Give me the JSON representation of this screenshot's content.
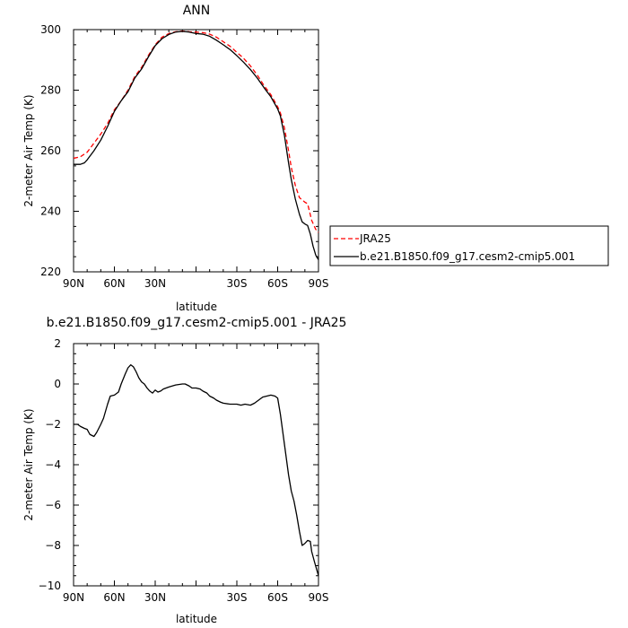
{
  "chart_data": [
    {
      "type": "line",
      "title": "ANN",
      "xlabel": "latitude",
      "ylabel": "2-meter Air Temp (K)",
      "xlim": [
        90,
        -90
      ],
      "ylim": [
        220,
        300
      ],
      "xticks": [
        90,
        60,
        30,
        0,
        -30,
        -60,
        -90
      ],
      "xtick_labels": [
        "90N",
        "60N",
        "30N",
        "",
        "30S",
        "60S",
        "90S"
      ],
      "yticks": [
        220,
        240,
        260,
        280,
        300
      ],
      "ytick_labels": [
        "220",
        "240",
        "260",
        "280",
        "300"
      ],
      "legend": "right",
      "series": [
        {
          "name": "JRA25",
          "color": "#ff0000",
          "dash": "dashed",
          "points": [
            [
              90,
              257.5
            ],
            [
              85,
              258
            ],
            [
              80,
              259.5
            ],
            [
              75,
              262.5
            ],
            [
              70,
              265.5
            ],
            [
              65,
              269
            ],
            [
              60,
              273.5
            ],
            [
              55,
              276.5
            ],
            [
              50,
              280
            ],
            [
              45,
              284.5
            ],
            [
              40,
              287.5
            ],
            [
              35,
              291.5
            ],
            [
              30,
              295
            ],
            [
              25,
              297.5
            ],
            [
              20,
              298.7
            ],
            [
              15,
              299.3
            ],
            [
              10,
              299.5
            ],
            [
              5,
              299.3
            ],
            [
              0,
              299.2
            ],
            [
              -5,
              299
            ],
            [
              -10,
              298.5
            ],
            [
              -15,
              297.5
            ],
            [
              -20,
              296
            ],
            [
              -25,
              294.5
            ],
            [
              -30,
              292.5
            ],
            [
              -35,
              290.5
            ],
            [
              -40,
              288
            ],
            [
              -45,
              285
            ],
            [
              -50,
              281.5
            ],
            [
              -55,
              278.5
            ],
            [
              -60,
              274.5
            ],
            [
              -62,
              272.5
            ],
            [
              -65,
              267.5
            ],
            [
              -68,
              260
            ],
            [
              -70,
              254.5
            ],
            [
              -73,
              248.5
            ],
            [
              -76,
              244.5
            ],
            [
              -80,
              243
            ],
            [
              -82,
              242.5
            ],
            [
              -85,
              237
            ],
            [
              -88,
              234
            ],
            [
              -90,
              233
            ]
          ]
        },
        {
          "name": "b.e21.B1850.f09_g17.cesm2-cmip5.001",
          "color": "#000000",
          "dash": "solid",
          "points": [
            [
              90,
              255.5
            ],
            [
              85,
              255.5
            ],
            [
              82,
              256
            ],
            [
              80,
              257
            ],
            [
              75,
              260
            ],
            [
              70,
              263.5
            ],
            [
              65,
              268
            ],
            [
              60,
              273
            ],
            [
              55,
              276.5
            ],
            [
              50,
              279.5
            ],
            [
              45,
              284
            ],
            [
              40,
              287
            ],
            [
              35,
              291
            ],
            [
              30,
              294.7
            ],
            [
              25,
              297
            ],
            [
              20,
              298.4
            ],
            [
              15,
              299.2
            ],
            [
              10,
              299.4
            ],
            [
              5,
              299.2
            ],
            [
              0,
              298.7
            ],
            [
              -5,
              298.5
            ],
            [
              -10,
              297.8
            ],
            [
              -15,
              296.5
            ],
            [
              -20,
              295
            ],
            [
              -25,
              293.4
            ],
            [
              -30,
              291.4
            ],
            [
              -35,
              289.2
            ],
            [
              -40,
              286.8
            ],
            [
              -45,
              284
            ],
            [
              -50,
              280.8
            ],
            [
              -55,
              277.8
            ],
            [
              -60,
              273.8
            ],
            [
              -62,
              271.5
            ],
            [
              -65,
              265
            ],
            [
              -68,
              256
            ],
            [
              -70,
              250.5
            ],
            [
              -73,
              244
            ],
            [
              -76,
              239
            ],
            [
              -78,
              236.5
            ],
            [
              -80,
              235.8
            ],
            [
              -82,
              235.3
            ],
            [
              -84,
              232.5
            ],
            [
              -86,
              228.5
            ],
            [
              -88,
              225.5
            ],
            [
              -90,
              224
            ]
          ]
        }
      ]
    },
    {
      "type": "line",
      "title": "b.e21.B1850.f09_g17.cesm2-cmip5.001  -  JRA25",
      "xlabel": "latitude",
      "ylabel": "2-meter Air Temp (K)",
      "xlim": [
        90,
        -90
      ],
      "ylim": [
        -10,
        2
      ],
      "xticks": [
        90,
        60,
        30,
        0,
        -30,
        -60,
        -90
      ],
      "xtick_labels": [
        "90N",
        "60N",
        "30N",
        "",
        "30S",
        "60S",
        "90S"
      ],
      "yticks": [
        -10,
        -8,
        -6,
        -4,
        -2,
        0,
        2
      ],
      "ytick_labels": [
        "−10",
        "−8",
        "−6",
        "−4",
        "−2",
        "0",
        "2"
      ],
      "series": [
        {
          "color": "#000000",
          "dash": "solid",
          "points": [
            [
              90,
              -2
            ],
            [
              87,
              -2
            ],
            [
              85,
              -2.1
            ],
            [
              82,
              -2.2
            ],
            [
              80,
              -2.25
            ],
            [
              78,
              -2.5
            ],
            [
              75,
              -2.6
            ],
            [
              73,
              -2.4
            ],
            [
              70,
              -2
            ],
            [
              68,
              -1.7
            ],
            [
              65,
              -1
            ],
            [
              63,
              -0.6
            ],
            [
              60,
              -0.55
            ],
            [
              57,
              -0.4
            ],
            [
              55,
              0
            ],
            [
              52,
              0.5
            ],
            [
              50,
              0.8
            ],
            [
              48,
              0.95
            ],
            [
              46,
              0.85
            ],
            [
              44,
              0.6
            ],
            [
              42,
              0.3
            ],
            [
              40,
              0.1
            ],
            [
              38,
              0
            ],
            [
              36,
              -0.2
            ],
            [
              34,
              -0.35
            ],
            [
              32,
              -0.45
            ],
            [
              30,
              -0.3
            ],
            [
              28,
              -0.4
            ],
            [
              26,
              -0.35
            ],
            [
              24,
              -0.25
            ],
            [
              20,
              -0.15
            ],
            [
              15,
              -0.05
            ],
            [
              10,
              0
            ],
            [
              8,
              0
            ],
            [
              5,
              -0.1
            ],
            [
              3,
              -0.2
            ],
            [
              0,
              -0.2
            ],
            [
              -3,
              -0.25
            ],
            [
              -5,
              -0.35
            ],
            [
              -8,
              -0.45
            ],
            [
              -10,
              -0.6
            ],
            [
              -13,
              -0.7
            ],
            [
              -15,
              -0.8
            ],
            [
              -18,
              -0.9
            ],
            [
              -20,
              -0.95
            ],
            [
              -25,
              -1
            ],
            [
              -30,
              -1
            ],
            [
              -33,
              -1.05
            ],
            [
              -36,
              -1.0
            ],
            [
              -40,
              -1.05
            ],
            [
              -43,
              -0.95
            ],
            [
              -46,
              -0.8
            ],
            [
              -49,
              -0.65
            ],
            [
              -52,
              -0.6
            ],
            [
              -55,
              -0.55
            ],
            [
              -58,
              -0.6
            ],
            [
              -60,
              -0.7
            ],
            [
              -62,
              -1.5
            ],
            [
              -64,
              -2.5
            ],
            [
              -66,
              -3.5
            ],
            [
              -68,
              -4.5
            ],
            [
              -70,
              -5.3
            ],
            [
              -72,
              -5.8
            ],
            [
              -74,
              -6.5
            ],
            [
              -76,
              -7.3
            ],
            [
              -78,
              -8
            ],
            [
              -80,
              -7.9
            ],
            [
              -82,
              -7.75
            ],
            [
              -84,
              -7.8
            ],
            [
              -85,
              -8.3
            ],
            [
              -87,
              -8.8
            ],
            [
              -90,
              -9.5
            ]
          ]
        }
      ]
    }
  ]
}
